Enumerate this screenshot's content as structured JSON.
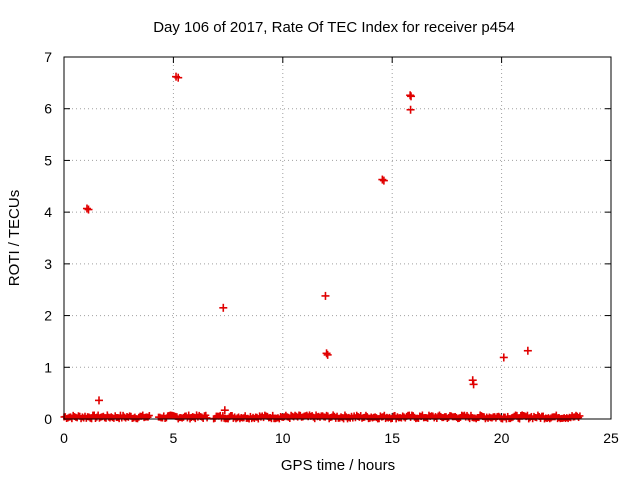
{
  "chart_data": {
    "type": "scatter",
    "title": "Day 106 of 2017, Rate Of TEC Index for receiver p454",
    "xlabel": "GPS time / hours",
    "ylabel": "ROTI / TECUs",
    "xlim": [
      0,
      25
    ],
    "ylim": [
      0,
      7
    ],
    "xticks": [
      0,
      5,
      10,
      15,
      20,
      25
    ],
    "yticks": [
      0,
      1,
      2,
      3,
      4,
      5,
      6,
      7
    ],
    "grid": true,
    "marker": "+",
    "color": "#e00000",
    "baseline_band": {
      "x_start": 0.0,
      "x_end": 23.6,
      "y_min": 0.0,
      "y_max": 0.08,
      "note": "dense continuous near-zero values"
    },
    "points": [
      {
        "x": 1.05,
        "y": 4.07
      },
      {
        "x": 1.12,
        "y": 4.05
      },
      {
        "x": 1.6,
        "y": 0.36
      },
      {
        "x": 5.12,
        "y": 6.62
      },
      {
        "x": 5.22,
        "y": 6.6
      },
      {
        "x": 7.28,
        "y": 2.15
      },
      {
        "x": 7.35,
        "y": 0.17
      },
      {
        "x": 11.95,
        "y": 2.38
      },
      {
        "x": 12.0,
        "y": 1.27
      },
      {
        "x": 12.05,
        "y": 1.24
      },
      {
        "x": 14.55,
        "y": 4.63
      },
      {
        "x": 14.62,
        "y": 4.61
      },
      {
        "x": 15.82,
        "y": 6.26
      },
      {
        "x": 15.86,
        "y": 6.24
      },
      {
        "x": 15.84,
        "y": 5.98
      },
      {
        "x": 18.68,
        "y": 0.75
      },
      {
        "x": 18.72,
        "y": 0.67
      },
      {
        "x": 20.1,
        "y": 1.19
      },
      {
        "x": 21.2,
        "y": 1.32
      }
    ]
  }
}
